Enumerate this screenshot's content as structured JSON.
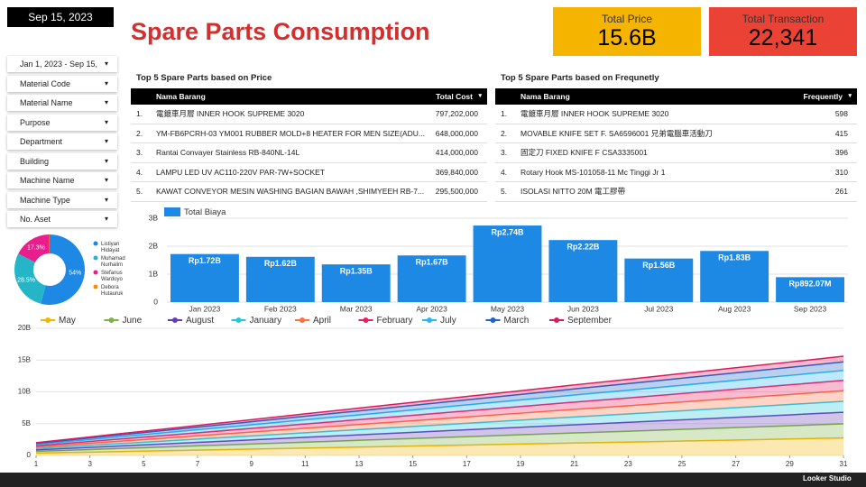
{
  "date_badge": "Sep 15, 2023",
  "title": "Spare Parts Consumption",
  "kpis": [
    {
      "label": "Total Price",
      "value": "15.6B",
      "color": "#f4b400"
    },
    {
      "label": "Total Transaction",
      "value": "22,341",
      "color": "#ea4335"
    }
  ],
  "filters": [
    "Jan 1, 2023 - Sep 15,",
    "Material Code",
    "Material Name",
    "Purpose",
    "Department",
    "Building",
    "Machine Name",
    "Machine Type",
    "No. Aset"
  ],
  "tables": [
    {
      "title": "Top 5 Spare Parts based on Price",
      "columns": [
        "Nama Barang",
        "Total Cost"
      ],
      "rows": [
        [
          "1.",
          "電鍍車月層 INNER HOOK SUPREME 3020",
          "797,202,000"
        ],
        [
          "2.",
          "YM-FB6PCRH-03 YM001 RUBBER MOLD+8 HEATER FOR MEN SIZE(ADU...",
          "648,000,000"
        ],
        [
          "3.",
          "Rantai Convayer Stainless RB-840NL-14L",
          "414,000,000"
        ],
        [
          "4.",
          "LAMPU LED UV AC110-220V PAR-7W+SOCKET",
          "369,840,000"
        ],
        [
          "5.",
          "KAWAT CONVEYOR MESIN WASHING BAGIAN BAWAH ,SHIMYEEH RB-7...",
          "295,500,000"
        ]
      ]
    },
    {
      "title": "Top 5 Spare Parts based on Frequnetly",
      "columns": [
        "Nama Barang",
        "Frequently"
      ],
      "rows": [
        [
          "1.",
          "電鍍車月層 INNER HOOK SUPREME 3020",
          "598"
        ],
        [
          "2.",
          "MOVABLE KNIFE SET F. SA6596001 兄弟電腦車活動刀",
          "415"
        ],
        [
          "3.",
          "固定刀 FIXED KNIFE F CSA3335001",
          "396"
        ],
        [
          "4.",
          "Rotary Hook MS-101058-11 Mc Tinggi Jr 1",
          "310"
        ],
        [
          "5.",
          "ISOLASI NITTO 20M 電工膠帶",
          "261"
        ]
      ]
    }
  ],
  "footer": "Looker Studio",
  "chart_data": [
    {
      "type": "pie",
      "categories": [
        "Listiyan Hidayat",
        "Muhamad Nurhalim",
        "Stefanus Wardoyo",
        "Debora Hutauruk"
      ],
      "values": [
        54,
        28.5,
        17.3,
        0.2
      ],
      "value_labels": [
        "54%",
        "28.5%",
        "17.3%",
        null
      ],
      "colors": [
        "#1e88e5",
        "#26b5c6",
        "#e91e8c",
        "#fb8c00"
      ]
    },
    {
      "type": "bar",
      "series": [
        {
          "name": "Total Biaya",
          "color": "#1e88e5",
          "values": [
            1.72,
            1.62,
            1.35,
            1.67,
            2.74,
            2.22,
            1.56,
            1.83,
            0.89207
          ]
        }
      ],
      "value_labels": [
        "Rp1.72B",
        "Rp1.62B",
        "Rp1.35B",
        "Rp1.67B",
        "Rp2.74B",
        "Rp2.22B",
        "Rp1.56B",
        "Rp1.83B",
        "Rp892.07M"
      ],
      "categories": [
        "Jan 2023",
        "Feb 2023",
        "Mar 2023",
        "Apr 2023",
        "May 2023",
        "Jun 2023",
        "Jul 2023",
        "Aug 2023",
        "Sep 2023"
      ],
      "ylim": [
        0,
        3
      ],
      "yticks": [
        0,
        {
          "value": 1,
          "label": "1B"
        },
        {
          "value": 2,
          "label": "2B"
        },
        {
          "value": 3,
          "label": "3B"
        }
      ],
      "grid": true
    },
    {
      "type": "area",
      "stacked": true,
      "x": [
        1,
        3,
        5,
        7,
        9,
        11,
        13,
        15,
        17,
        19,
        21,
        23,
        25,
        27,
        29,
        31
      ],
      "xlim": [
        1,
        31
      ],
      "xticks": [
        1,
        3,
        5,
        7,
        9,
        11,
        13,
        15,
        17,
        19,
        21,
        23,
        25,
        27,
        29,
        31
      ],
      "ylim": [
        0,
        20
      ],
      "yticks": [
        0,
        {
          "value": 5,
          "label": "5B"
        },
        {
          "value": 10,
          "label": "10B"
        },
        {
          "value": 15,
          "label": "15B"
        },
        {
          "value": 20,
          "label": "20B"
        }
      ],
      "grid": true,
      "series": [
        {
          "name": "May",
          "color": "#f4b400",
          "values": [
            0.35,
            0.51,
            0.67,
            0.83,
            0.99,
            1.15,
            1.31,
            1.47,
            1.63,
            1.79,
            1.95,
            2.1,
            2.26,
            2.42,
            2.58,
            2.74
          ]
        },
        {
          "name": "June",
          "color": "#7cb342",
          "values": [
            0.29,
            0.42,
            0.54,
            0.67,
            0.8,
            0.93,
            1.06,
            1.19,
            1.32,
            1.45,
            1.58,
            1.7,
            1.83,
            1.96,
            2.09,
            2.22
          ]
        },
        {
          "name": "August",
          "color": "#673ab7",
          "values": [
            0.24,
            0.34,
            0.45,
            0.55,
            0.66,
            0.77,
            0.87,
            0.98,
            1.09,
            1.19,
            1.3,
            1.41,
            1.51,
            1.62,
            1.72,
            1.83
          ]
        },
        {
          "name": "January",
          "color": "#26c6da",
          "values": [
            0.22,
            0.32,
            0.42,
            0.52,
            0.62,
            0.72,
            0.82,
            0.92,
            1.02,
            1.12,
            1.22,
            1.32,
            1.42,
            1.52,
            1.62,
            1.72
          ]
        },
        {
          "name": "April",
          "color": "#ff7043",
          "values": [
            0.22,
            0.31,
            0.41,
            0.51,
            0.6,
            0.7,
            0.8,
            0.89,
            0.99,
            1.09,
            1.19,
            1.28,
            1.38,
            1.48,
            1.57,
            1.67
          ]
        },
        {
          "name": "February",
          "color": "#e91e63",
          "values": [
            0.21,
            0.3,
            0.4,
            0.49,
            0.58,
            0.68,
            0.77,
            0.87,
            0.96,
            1.06,
            1.15,
            1.24,
            1.34,
            1.43,
            1.53,
            1.62
          ]
        },
        {
          "name": "July",
          "color": "#29b6f6",
          "values": [
            0.2,
            0.29,
            0.38,
            0.47,
            0.56,
            0.65,
            0.74,
            0.83,
            0.93,
            1.02,
            1.11,
            1.2,
            1.29,
            1.38,
            1.47,
            1.56
          ]
        },
        {
          "name": "March",
          "color": "#1e63c8",
          "values": [
            0.17,
            0.25,
            0.33,
            0.41,
            0.49,
            0.57,
            0.64,
            0.72,
            0.8,
            0.88,
            0.96,
            1.04,
            1.12,
            1.19,
            1.27,
            1.35
          ]
        },
        {
          "name": "September",
          "color": "#d81b60",
          "values": [
            0.11,
            0.17,
            0.22,
            0.27,
            0.32,
            0.37,
            0.43,
            0.48,
            0.53,
            0.58,
            0.63,
            0.68,
            0.74,
            0.79,
            0.84,
            0.89
          ]
        }
      ]
    }
  ]
}
